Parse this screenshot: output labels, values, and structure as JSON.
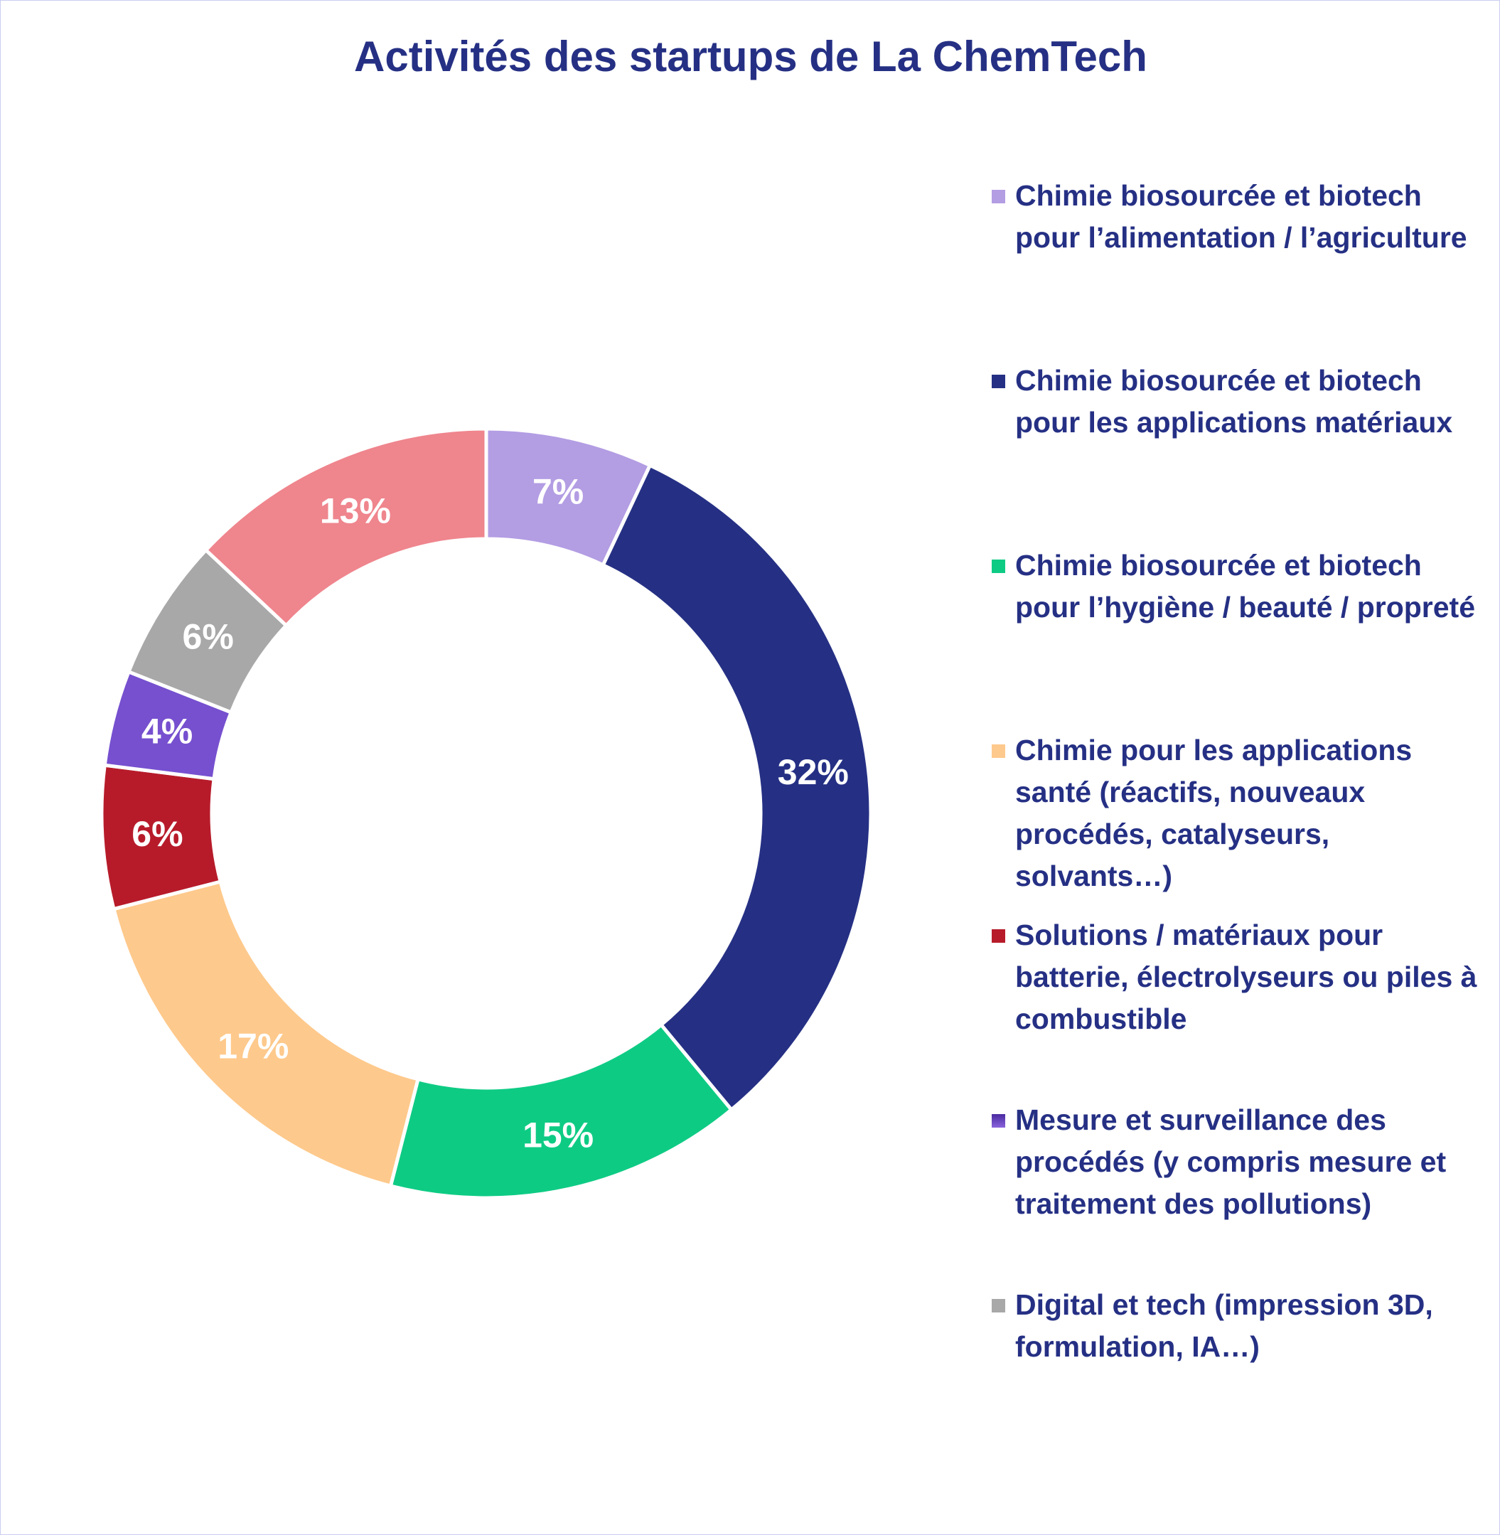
{
  "chart_data": {
    "type": "pie",
    "subtype": "donut",
    "title": "Activités des startups de La ChemTech",
    "slices": [
      {
        "name": "Chimie biosourcée et biotech pour l’alimentation / l’agriculture",
        "value": 7,
        "label": "7%",
        "color": "#b39de3",
        "in_legend": true
      },
      {
        "name": "Chimie biosourcée et biotech pour les applications matériaux",
        "value": 32,
        "label": "32%",
        "color": "#253084",
        "in_legend": true
      },
      {
        "name": "Chimie biosourcée et biotech pour l’hygiène / beauté / propreté",
        "value": 15,
        "label": "15%",
        "color": "#0ecb84",
        "in_legend": true
      },
      {
        "name": "Chimie pour les applications santé (réactifs, nouveaux procédés, catalyseurs, solvants…)",
        "value": 17,
        "label": "17%",
        "color": "#fec98c",
        "in_legend": true
      },
      {
        "name": "Solutions / matériaux pour batterie, électrolyseurs ou piles à combustible",
        "value": 6,
        "label": "6%",
        "color": "#b71b2a",
        "in_legend": true
      },
      {
        "name": "Mesure et surveillance des procédés (y compris mesure et traitement des pollutions)",
        "value": 4,
        "label": "4%",
        "color": "#7650cf",
        "in_legend": true
      },
      {
        "name": "Digital et tech (impression 3D, formulation, IA…)",
        "value": 6,
        "label": "6%",
        "color": "#a8a8a8",
        "in_legend": true
      },
      {
        "name": "",
        "value": 13,
        "label": "13%",
        "color": "#ef858d",
        "in_legend": false
      }
    ],
    "legend_position": "right"
  }
}
